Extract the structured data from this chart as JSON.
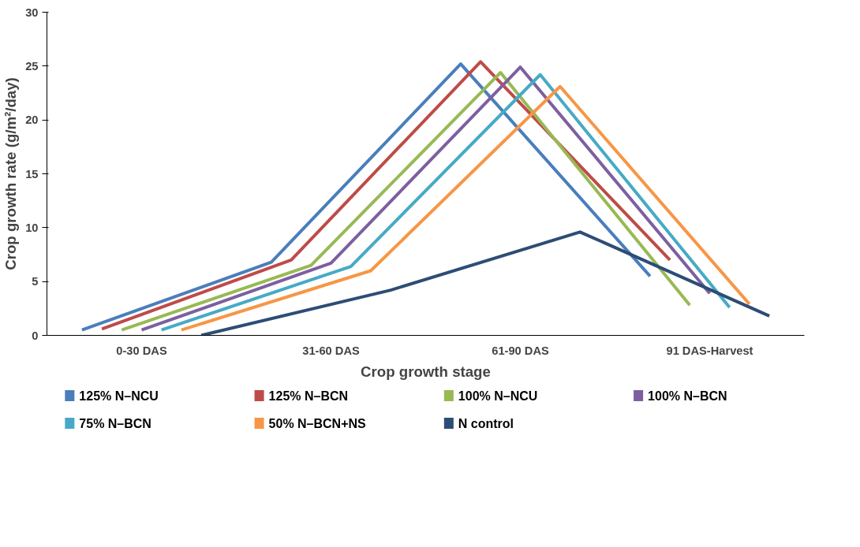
{
  "chart_data": {
    "type": "line",
    "xlabel": "Crop growth stage",
    "ylabel": "Crop growth rate (g/m²/day)",
    "categories": [
      "0-30 DAS",
      "31-60 DAS",
      "61-90 DAS",
      "91 DAS-Harvest"
    ],
    "ylim": [
      0,
      30
    ],
    "yticks": [
      0,
      5,
      10,
      15,
      20,
      25,
      30
    ],
    "grid": false,
    "legend": "bottom",
    "line_style": "solid",
    "series": [
      {
        "name": "125% N–NCU",
        "color": "#4a7ebb",
        "values": [
          0.5,
          6.8,
          25.2,
          5.5
        ]
      },
      {
        "name": "125% N–BCN",
        "color": "#be4b48",
        "values": [
          0.6,
          7.0,
          25.4,
          7.0
        ]
      },
      {
        "name": "100% N–NCU",
        "color": "#98b954",
        "values": [
          0.5,
          6.5,
          24.4,
          2.8
        ]
      },
      {
        "name": "100% N–BCN",
        "color": "#7d5fa0",
        "values": [
          0.5,
          6.7,
          24.9,
          3.9
        ]
      },
      {
        "name": "75% N–BCN",
        "color": "#46aac5",
        "values": [
          0.5,
          6.4,
          24.2,
          2.6
        ]
      },
      {
        "name": "50% N–BCN+NS",
        "color": "#f79646",
        "values": [
          0.5,
          6.0,
          23.1,
          2.9
        ]
      },
      {
        "name": "N control",
        "color": "#2c4d75",
        "values": [
          0.0,
          4.2,
          9.6,
          1.8
        ]
      }
    ]
  }
}
